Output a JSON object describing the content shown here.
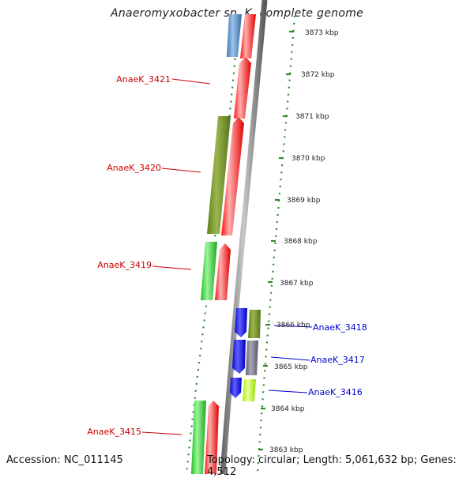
{
  "title": "Anaeromyxobacter sp. K, complete genome",
  "footer": {
    "accession": "Accession: NC_011145",
    "summary": "Topology: circular; Length: 5,061,632 bp; Genes: 4,512"
  },
  "colors": {
    "red": "#ff1010",
    "olive": "#6b8a22",
    "green": "#2ecc2e",
    "blue": "#1010e0",
    "gray": "#707080",
    "lime": "#bfff1a",
    "steel": "#4f86c0",
    "ruler_green": "#2a8a2a",
    "gene_label_red": "#cc0000",
    "gene_label_blue": "#0000cc"
  },
  "ruler": [
    "3873 kbp",
    "3872 kbp",
    "3871 kbp",
    "3870 kbp",
    "3869 kbp",
    "3868 kbp",
    "3867 kbp",
    "3866 kbp",
    "3865 kbp",
    "3864 kbp",
    "3863 kbp"
  ],
  "gene_labels": [
    {
      "text": "AnaeK_3421",
      "color": "red"
    },
    {
      "text": "AnaeK_3420",
      "color": "red"
    },
    {
      "text": "AnaeK_3419",
      "color": "red"
    },
    {
      "text": "AnaeK_3418",
      "color": "blue"
    },
    {
      "text": "AnaeK_3417",
      "color": "blue"
    },
    {
      "text": "AnaeK_3416",
      "color": "blue"
    },
    {
      "text": "AnaeK_3415",
      "color": "red"
    }
  ]
}
